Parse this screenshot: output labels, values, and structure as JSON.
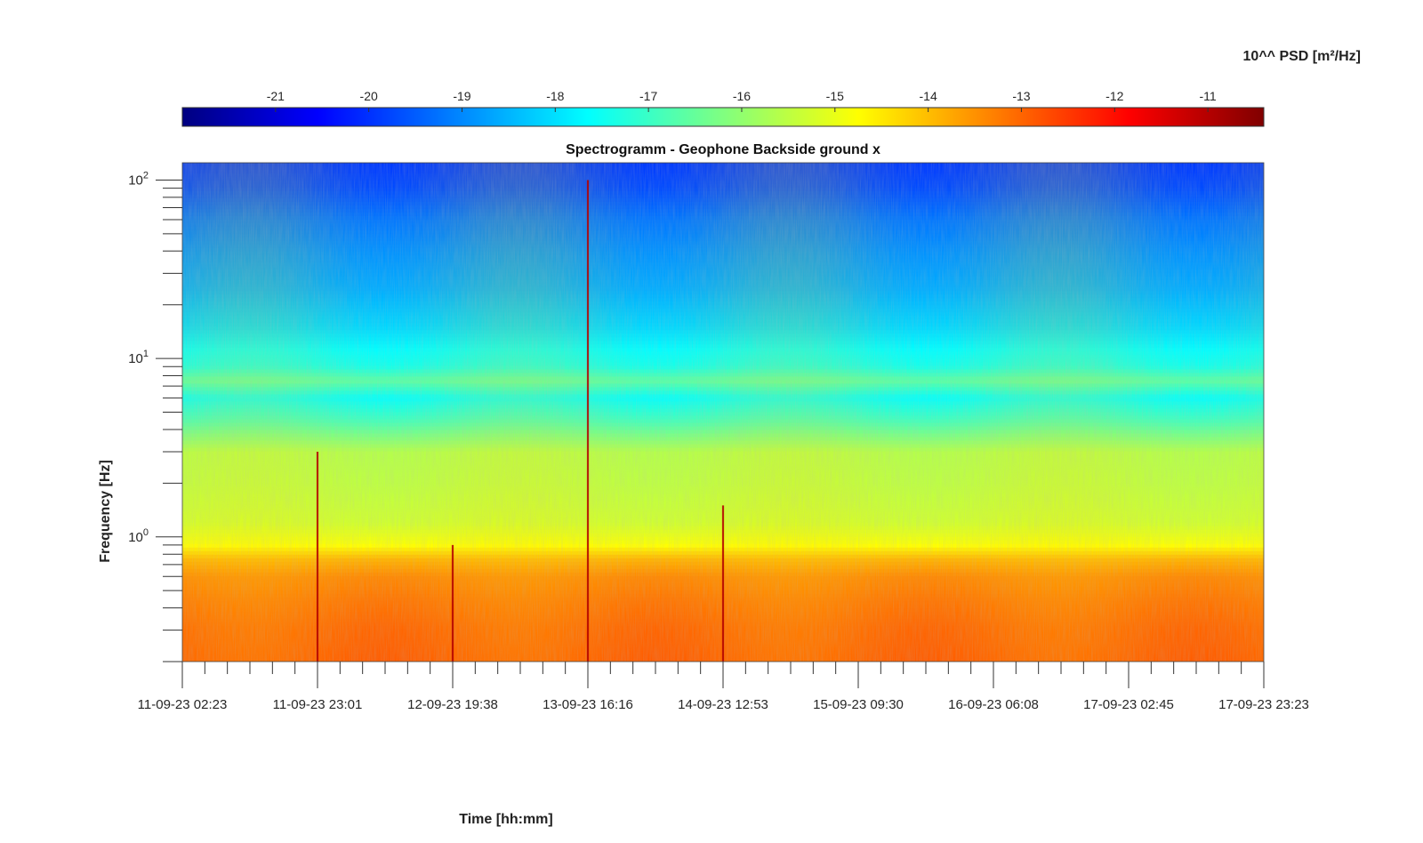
{
  "chart_data": {
    "type": "heatmap",
    "title": "Spectrogramm - Geophone Backside ground x",
    "xlabel": "Time [hh:mm]",
    "ylabel": "Frequency [Hz]",
    "colorbar_label": "10^^ PSD [m²/Hz]",
    "colormap": "jet",
    "colorbar_placement": "top",
    "grid": false,
    "x_ticks": [
      "11-09-23 02:23",
      "11-09-23 23:01",
      "12-09-23 19:38",
      "13-09-23 16:16",
      "14-09-23 12:53",
      "15-09-23 09:30",
      "16-09-23 06:08",
      "17-09-23 02:45",
      "17-09-23 23:23"
    ],
    "y_scale": "log",
    "y_ticks": [
      {
        "base": "10",
        "exp": "0",
        "value": 1
      },
      {
        "base": "10",
        "exp": "1",
        "value": 10
      },
      {
        "base": "10",
        "exp": "2",
        "value": 100
      }
    ],
    "ylim": [
      0.2,
      125
    ],
    "color_ticks": [
      "-21",
      "-20",
      "-19",
      "-18",
      "-17",
      "-16",
      "-15",
      "-14",
      "-13",
      "-12",
      "-11"
    ],
    "color_ticks_values": [
      -21,
      -20,
      -19,
      -18,
      -17,
      -16,
      -15,
      -14,
      -13,
      -12,
      -11
    ],
    "clim": [
      -22,
      -10.4
    ],
    "psd_profile": {
      "description_units": "log10 PSD at frequency (Hz)",
      "freq": [
        0.2,
        0.3,
        0.45,
        0.6,
        0.75,
        0.9,
        1.2,
        2,
        3,
        4.5,
        6,
        7.5,
        9,
        11.5,
        15,
        25,
        40,
        60,
        90,
        125
      ],
      "log_psd": [
        -12.9,
        -13.0,
        -13.2,
        -13.4,
        -13.9,
        -14.8,
        -15.3,
        -15.5,
        -15.6,
        -16.9,
        -17.6,
        -16.6,
        -17.4,
        -17.7,
        -18.1,
        -18.6,
        -18.9,
        -19.2,
        -19.7,
        -19.9
      ]
    },
    "transients": [
      {
        "time": "11-09-23 23:01",
        "top_freq": 3
      },
      {
        "time": "12-09-23 19:38",
        "top_freq": 0.9
      },
      {
        "time": "13-09-23 16:16",
        "top_freq": 100
      },
      {
        "time": "14-09-23 12:53",
        "top_freq": 1.5
      }
    ]
  }
}
